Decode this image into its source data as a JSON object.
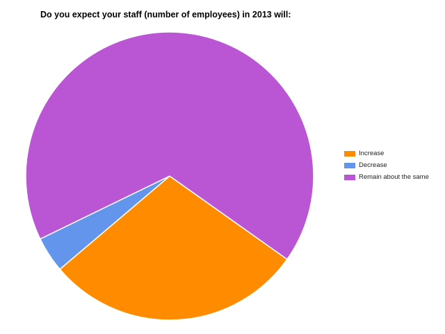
{
  "chart_data": {
    "type": "pie",
    "title": "Do you expect your staff (number of employees) in 2013 will:",
    "slices": [
      {
        "label": "Increase",
        "value": 29,
        "color": "#ff8c00"
      },
      {
        "label": "Decrease",
        "value": 4,
        "color": "#6495ed"
      },
      {
        "label": "Remain about the same",
        "value": 67,
        "color": "#ba55d3"
      }
    ],
    "legend_position": "right"
  }
}
